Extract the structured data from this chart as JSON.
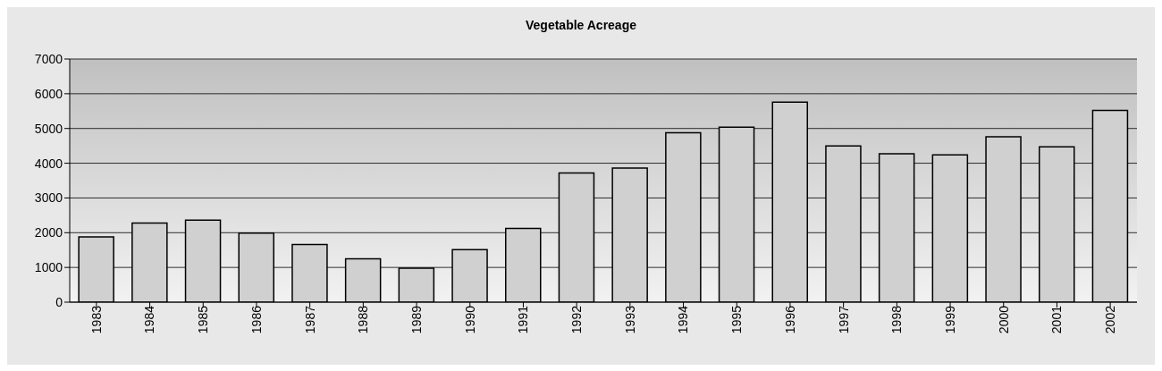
{
  "chart_data": {
    "type": "bar",
    "title": "Vegetable Acreage",
    "categories": [
      "1983",
      "1984",
      "1985",
      "1986",
      "1987",
      "1988",
      "1989",
      "1990",
      "1991",
      "1992",
      "1993",
      "1994",
      "1995",
      "1996",
      "1997",
      "1998",
      "1999",
      "2000",
      "2001",
      "2002"
    ],
    "values": [
      1880,
      2280,
      2360,
      1990,
      1660,
      1250,
      980,
      1510,
      2120,
      3720,
      3860,
      4880,
      5040,
      5760,
      4500,
      4270,
      4240,
      4760,
      4470,
      5520
    ],
    "color": "#d0d0d0",
    "ylim": [
      0,
      7000
    ],
    "yticks": [
      0,
      1000,
      2000,
      3000,
      4000,
      5000,
      6000,
      7000
    ],
    "grid": "y",
    "legend": false
  }
}
